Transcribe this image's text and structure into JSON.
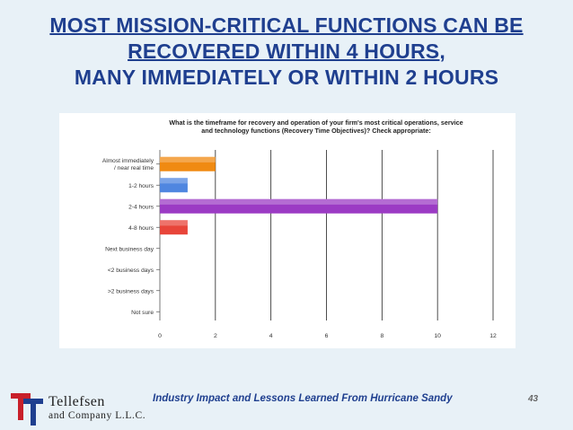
{
  "slide": {
    "title_lines": [
      "MOST MISSION-CRITICAL FUNCTIONS CAN BE",
      "RECOVERED WITHIN 4 HOURS,",
      "MANY IMMEDIATELY  OR WITHIN 2 HOURS"
    ],
    "footer": "Industry Impact and Lessons Learned From Hurricane Sandy",
    "page_number": "43"
  },
  "logo": {
    "name": "Tellefsen",
    "subtitle": "and Company L.L.C.",
    "colors": {
      "red": "#c8202a",
      "navy": "#1f3f8f"
    }
  },
  "chart_data": {
    "type": "bar",
    "orientation": "horizontal",
    "title": "What is the timeframe for recovery and operation of your firm's most critical operations, service and technology functions (Recovery Time Objectives)?  Check appropriate:",
    "categories": [
      "Almost immediately / near real time",
      "1-2 hours",
      "2-4 hours",
      "4-8 hours",
      "Next business day",
      "<2 business days",
      ">2 business days",
      "Not sure"
    ],
    "values": [
      2,
      1,
      10,
      1,
      0,
      0,
      0,
      0
    ],
    "bar_colors": [
      "#f08a12",
      "#4f86e0",
      "#9b3bc4",
      "#e8453a",
      "#cccccc",
      "#cccccc",
      "#cccccc",
      "#cccccc"
    ],
    "xlim": [
      0,
      12
    ],
    "xticks": [
      "0",
      "2",
      "4",
      "6",
      "8",
      "10",
      "12"
    ],
    "grid": "vertical"
  }
}
